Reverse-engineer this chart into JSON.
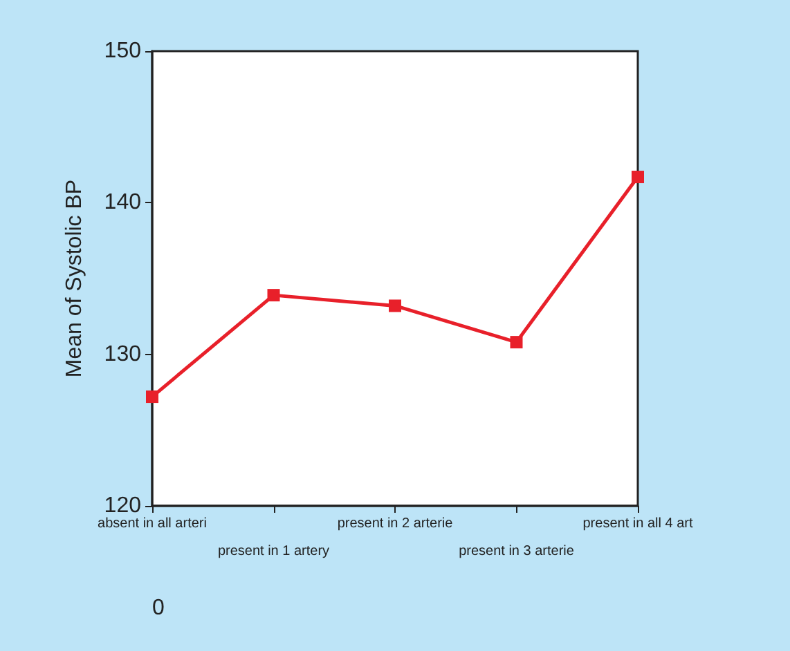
{
  "chart_data": {
    "type": "line",
    "ylabel": "Mean of Systolic BP",
    "categories": [
      "absent in all arteri",
      "present in 1 artery",
      "present in 2 arterie",
      "present in 3 arterie",
      "present in all 4 art"
    ],
    "series": [
      {
        "color": "#e8202a",
        "values": [
          127.2,
          133.9,
          133.2,
          130.8,
          141.7
        ]
      }
    ],
    "ylim": [
      120,
      150
    ],
    "yticks": [
      120,
      130,
      140,
      150
    ],
    "marker": "square",
    "line_style": "solid",
    "annotations": [
      "0"
    ]
  }
}
